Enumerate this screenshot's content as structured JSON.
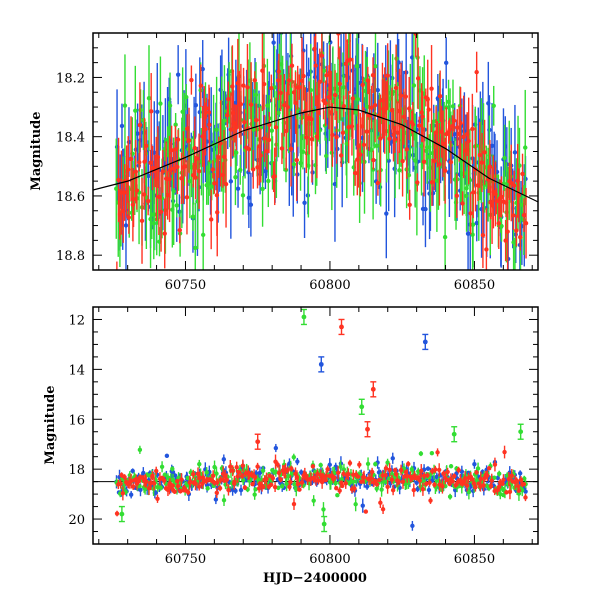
{
  "chart_data": [
    {
      "type": "scatter",
      "panel": "top",
      "ylabel": "Magnitude",
      "xlabel": "",
      "xlim": [
        60718,
        60872
      ],
      "ylim": [
        18.85,
        18.05
      ],
      "y_inverted": true,
      "x_ticks": [
        60750,
        60800,
        60850
      ],
      "y_ticks": [
        18.2,
        18.4,
        18.6,
        18.8
      ],
      "x_tick_labels": [
        "60750",
        "60800",
        "60850"
      ],
      "y_tick_labels": [
        "18.2",
        "18.4",
        "18.6",
        "18.8"
      ],
      "series_colors": [
        "#2255dd",
        "#33dd33",
        "#ff3322"
      ],
      "trend_curve": [
        [
          60718,
          18.58
        ],
        [
          60730,
          18.55
        ],
        [
          60750,
          18.47
        ],
        [
          60770,
          18.38
        ],
        [
          60790,
          18.32
        ],
        [
          60800,
          18.3
        ],
        [
          60810,
          18.31
        ],
        [
          60825,
          18.36
        ],
        [
          60840,
          18.44
        ],
        [
          60855,
          18.54
        ],
        [
          60872,
          18.62
        ]
      ],
      "error_bar_scale": 0.05
    },
    {
      "type": "scatter",
      "panel": "bottom",
      "ylabel": "Magnitude",
      "xlabel": "HJD−2400000",
      "xlim": [
        60718,
        60872
      ],
      "ylim": [
        21,
        11.5
      ],
      "y_inverted": true,
      "x_ticks": [
        60750,
        60800,
        60850
      ],
      "y_ticks": [
        12,
        14,
        16,
        18,
        20
      ],
      "x_tick_labels": [
        "60750",
        "60800",
        "60850"
      ],
      "y_tick_labels": [
        "12",
        "14",
        "16",
        "18",
        "20"
      ],
      "reference_line_y": 18.5,
      "series_colors": [
        "#2255dd",
        "#33dd33",
        "#ff3322"
      ],
      "outliers": [
        {
          "x": 60791,
          "y": 11.9,
          "color": "#33dd33"
        },
        {
          "x": 60804,
          "y": 12.3,
          "color": "#ff3322"
        },
        {
          "x": 60797,
          "y": 13.8,
          "color": "#2255dd"
        },
        {
          "x": 60833,
          "y": 12.9,
          "color": "#2255dd"
        },
        {
          "x": 60815,
          "y": 14.8,
          "color": "#ff3322"
        },
        {
          "x": 60811,
          "y": 15.5,
          "color": "#33dd33"
        },
        {
          "x": 60813,
          "y": 16.4,
          "color": "#ff3322"
        },
        {
          "x": 60775,
          "y": 16.9,
          "color": "#ff3322"
        },
        {
          "x": 60866,
          "y": 16.5,
          "color": "#33dd33"
        },
        {
          "x": 60843,
          "y": 16.6,
          "color": "#33dd33"
        },
        {
          "x": 60798,
          "y": 20.2,
          "color": "#33dd33"
        },
        {
          "x": 60728,
          "y": 19.8,
          "color": "#33dd33"
        }
      ],
      "error_bar_scale": 0.3
    }
  ],
  "baseline": {
    "x_start": 60726,
    "x_end": 60868,
    "points_per_series": 260,
    "noise": 0.12
  }
}
